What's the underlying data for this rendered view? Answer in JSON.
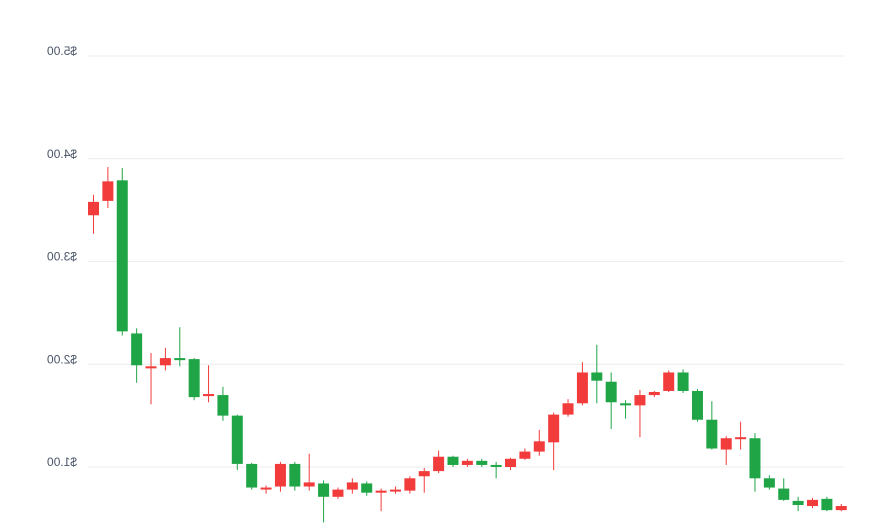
{
  "chart_data": {
    "type": "candlestick",
    "mirrored": true,
    "grid": true,
    "legend": "none",
    "ylim": [
      0.5,
      5.0
    ],
    "y_ticks": [
      1,
      2,
      3,
      4,
      5
    ],
    "y_tick_labels": [
      "$1.00",
      "$2.00",
      "$3.00",
      "$4.00",
      "$5.00"
    ],
    "colors": {
      "up": "#1fa546",
      "down": "#f23b3b",
      "grid": "#ececec",
      "label": "#4a5568"
    },
    "candles": [
      {
        "open": 3.58,
        "close": 3.45,
        "high": 3.65,
        "low": 3.27,
        "dir": "down"
      },
      {
        "open": 3.78,
        "close": 3.59,
        "high": 3.92,
        "low": 3.52,
        "dir": "down"
      },
      {
        "open": 3.79,
        "close": 2.32,
        "high": 3.91,
        "low": 2.28,
        "dir": "up"
      },
      {
        "open": 2.3,
        "close": 1.99,
        "high": 2.35,
        "low": 1.82,
        "dir": "up"
      },
      {
        "open": 1.98,
        "close": 1.96,
        "high": 2.11,
        "low": 1.61,
        "dir": "down"
      },
      {
        "open": 2.06,
        "close": 1.99,
        "high": 2.16,
        "low": 1.94,
        "dir": "down"
      },
      {
        "open": 2.06,
        "close": 2.04,
        "high": 2.36,
        "low": 1.98,
        "dir": "up"
      },
      {
        "open": 2.05,
        "close": 1.68,
        "high": 2.06,
        "low": 1.65,
        "dir": "up"
      },
      {
        "open": 1.71,
        "close": 1.69,
        "high": 1.99,
        "low": 1.63,
        "dir": "down"
      },
      {
        "open": 1.7,
        "close": 1.5,
        "high": 1.78,
        "low": 1.45,
        "dir": "up"
      },
      {
        "open": 1.5,
        "close": 1.03,
        "high": 1.51,
        "low": 0.97,
        "dir": "up"
      },
      {
        "open": 1.03,
        "close": 0.8,
        "high": 1.04,
        "low": 0.78,
        "dir": "up"
      },
      {
        "open": 0.8,
        "close": 0.79,
        "high": 0.82,
        "low": 0.74,
        "dir": "down"
      },
      {
        "open": 1.03,
        "close": 0.81,
        "high": 1.05,
        "low": 0.76,
        "dir": "down"
      },
      {
        "open": 1.03,
        "close": 0.81,
        "high": 1.05,
        "low": 0.77,
        "dir": "up"
      },
      {
        "open": 0.85,
        "close": 0.81,
        "high": 1.13,
        "low": 0.77,
        "dir": "down"
      },
      {
        "open": 0.84,
        "close": 0.71,
        "high": 0.87,
        "low": 0.46,
        "dir": "up"
      },
      {
        "open": 0.78,
        "close": 0.71,
        "high": 0.8,
        "low": 0.69,
        "dir": "down"
      },
      {
        "open": 0.85,
        "close": 0.78,
        "high": 0.89,
        "low": 0.74,
        "dir": "down"
      },
      {
        "open": 0.84,
        "close": 0.75,
        "high": 0.86,
        "low": 0.72,
        "dir": "up"
      },
      {
        "open": 0.77,
        "close": 0.75,
        "high": 0.79,
        "low": 0.57,
        "dir": "down"
      },
      {
        "open": 0.78,
        "close": 0.77,
        "high": 0.81,
        "low": 0.74,
        "dir": "down"
      },
      {
        "open": 0.89,
        "close": 0.77,
        "high": 0.91,
        "low": 0.74,
        "dir": "down"
      },
      {
        "open": 0.96,
        "close": 0.91,
        "high": 0.99,
        "low": 0.75,
        "dir": "down"
      },
      {
        "open": 1.1,
        "close": 0.96,
        "high": 1.16,
        "low": 0.94,
        "dir": "down"
      },
      {
        "open": 1.1,
        "close": 1.02,
        "high": 1.11,
        "low": 1.0,
        "dir": "up"
      },
      {
        "open": 1.06,
        "close": 1.02,
        "high": 1.08,
        "low": 1.0,
        "dir": "down"
      },
      {
        "open": 1.06,
        "close": 1.02,
        "high": 1.08,
        "low": 1.0,
        "dir": "up"
      },
      {
        "open": 1.02,
        "close": 1.01,
        "high": 1.05,
        "low": 0.89,
        "dir": "up"
      },
      {
        "open": 1.08,
        "close": 1.0,
        "high": 1.09,
        "low": 0.97,
        "dir": "down"
      },
      {
        "open": 1.15,
        "close": 1.08,
        "high": 1.18,
        "low": 1.07,
        "dir": "down"
      },
      {
        "open": 1.25,
        "close": 1.15,
        "high": 1.36,
        "low": 1.11,
        "dir": "down"
      },
      {
        "open": 1.51,
        "close": 1.24,
        "high": 1.53,
        "low": 0.97,
        "dir": "down"
      },
      {
        "open": 1.62,
        "close": 1.51,
        "high": 1.66,
        "low": 1.49,
        "dir": "down"
      },
      {
        "open": 1.92,
        "close": 1.62,
        "high": 2.02,
        "low": 1.6,
        "dir": "down"
      },
      {
        "open": 1.92,
        "close": 1.84,
        "high": 2.19,
        "low": 1.62,
        "dir": "up"
      },
      {
        "open": 1.83,
        "close": 1.63,
        "high": 1.92,
        "low": 1.37,
        "dir": "up"
      },
      {
        "open": 1.62,
        "close": 1.6,
        "high": 1.65,
        "low": 1.47,
        "dir": "up"
      },
      {
        "open": 1.7,
        "close": 1.6,
        "high": 1.75,
        "low": 1.29,
        "dir": "down"
      },
      {
        "open": 1.73,
        "close": 1.7,
        "high": 1.74,
        "low": 1.68,
        "dir": "down"
      },
      {
        "open": 1.92,
        "close": 1.74,
        "high": 1.94,
        "low": 1.73,
        "dir": "down"
      },
      {
        "open": 1.92,
        "close": 1.74,
        "high": 1.95,
        "low": 1.72,
        "dir": "up"
      },
      {
        "open": 1.74,
        "close": 1.46,
        "high": 1.76,
        "low": 1.44,
        "dir": "up"
      },
      {
        "open": 1.46,
        "close": 1.18,
        "high": 1.64,
        "low": 1.17,
        "dir": "up"
      },
      {
        "open": 1.28,
        "close": 1.17,
        "high": 1.3,
        "low": 1.02,
        "dir": "down"
      },
      {
        "open": 1.29,
        "close": 1.28,
        "high": 1.44,
        "low": 1.17,
        "dir": "down"
      },
      {
        "open": 1.28,
        "close": 0.89,
        "high": 1.33,
        "low": 0.76,
        "dir": "up"
      },
      {
        "open": 0.89,
        "close": 0.8,
        "high": 0.92,
        "low": 0.78,
        "dir": "up"
      },
      {
        "open": 0.79,
        "close": 0.68,
        "high": 0.89,
        "low": 0.67,
        "dir": "up"
      },
      {
        "open": 0.67,
        "close": 0.63,
        "high": 0.71,
        "low": 0.57,
        "dir": "up"
      },
      {
        "open": 0.68,
        "close": 0.62,
        "high": 0.7,
        "low": 0.6,
        "dir": "down"
      },
      {
        "open": 0.69,
        "close": 0.58,
        "high": 0.71,
        "low": 0.57,
        "dir": "up"
      },
      {
        "open": 0.62,
        "close": 0.58,
        "high": 0.64,
        "low": 0.57,
        "dir": "down"
      }
    ]
  }
}
